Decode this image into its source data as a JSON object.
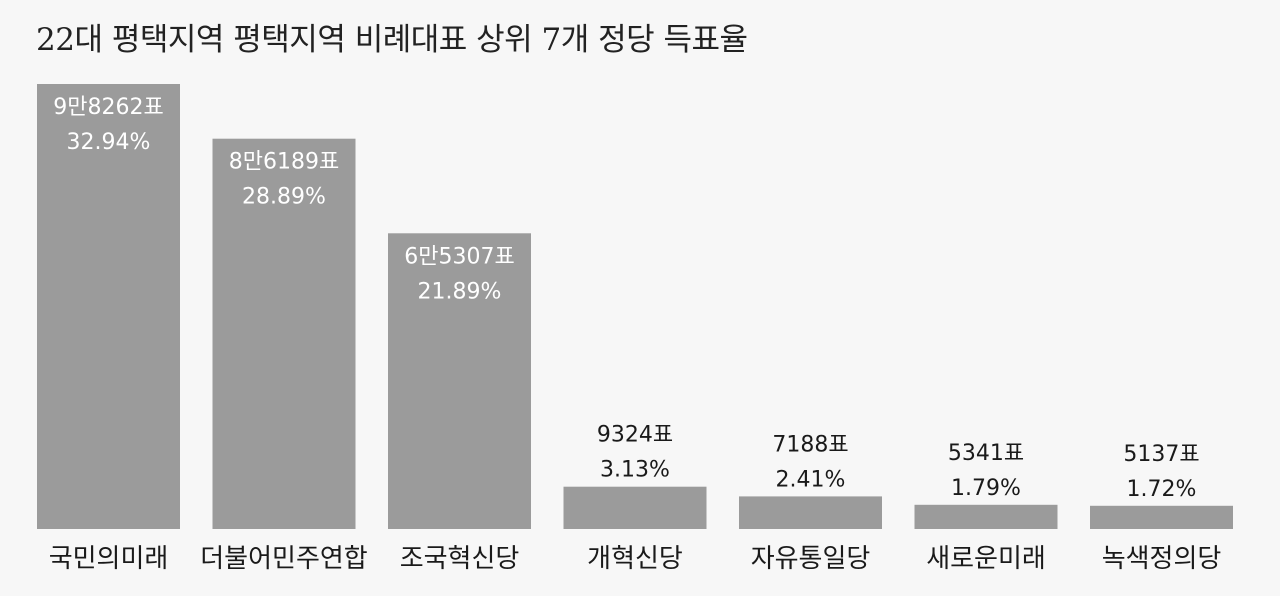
{
  "chart_data": {
    "type": "bar",
    "title": "22대 평택지역 평택지역 비례대표 상위 7개 정당 득표율",
    "categories": [
      "국민의미래",
      "더불어민주연합",
      "조국혁신당",
      "개혁신당",
      "자유통일당",
      "새로운미래",
      "녹색정의당"
    ],
    "values": [
      32.94,
      28.89,
      21.89,
      3.13,
      2.41,
      1.79,
      1.72
    ],
    "vote_labels": [
      "9만8262표",
      "8만6189표",
      "6만5307표",
      "9324표",
      "7188표",
      "5341표",
      "5137표"
    ],
    "percent_labels": [
      "32.94%",
      "28.89%",
      "21.89%",
      "3.13%",
      "2.41%",
      "1.79%",
      "1.72%"
    ],
    "bar_color": "#9b9b9b",
    "ylim": [
      0,
      34
    ],
    "grid": false,
    "legend": "none"
  }
}
